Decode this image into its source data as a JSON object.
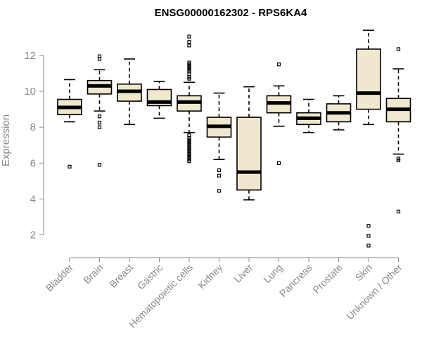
{
  "chart_data": {
    "type": "boxplot",
    "title": "ENSG00000162302 - RPS6KA4",
    "xlabel": "",
    "ylabel": "Expression",
    "ylim": [
      1.2,
      13.6
    ],
    "yticks": [
      2,
      4,
      6,
      8,
      10,
      12
    ],
    "grid": false,
    "categories": [
      "Bladder",
      "Brain",
      "Breast",
      "Gastric",
      "Hematopoietic cells",
      "Kidney",
      "Liver",
      "Lung",
      "Pancreas",
      "Prostate",
      "Skin",
      "Unknown / Other"
    ],
    "box_color": "#efe8cf",
    "boxes": [
      {
        "min": 8.3,
        "q1": 8.7,
        "median": 9.1,
        "q3": 9.55,
        "max": 10.65,
        "outliers": [
          5.8
        ]
      },
      {
        "min": 8.9,
        "q1": 9.85,
        "median": 10.3,
        "q3": 10.6,
        "max": 11.2,
        "outliers": [
          11.95,
          11.8,
          8.6,
          8.25,
          8.0,
          5.9
        ]
      },
      {
        "min": 8.15,
        "q1": 9.45,
        "median": 10.0,
        "q3": 10.4,
        "max": 11.8,
        "outliers": []
      },
      {
        "min": 8.5,
        "q1": 9.2,
        "median": 9.4,
        "q3": 10.1,
        "max": 10.55,
        "outliers": []
      },
      {
        "min": 7.7,
        "q1": 8.9,
        "median": 9.4,
        "q3": 9.75,
        "max": 10.5,
        "outliers": [
          13.05,
          12.75,
          12.55,
          11.6,
          11.5,
          11.4,
          11.3,
          11.2,
          11.1,
          10.95,
          10.8,
          10.7,
          7.55,
          7.4,
          7.3,
          7.2,
          7.1,
          7.0,
          6.9,
          6.8,
          6.7,
          6.6,
          6.5,
          6.4,
          6.3,
          6.2,
          6.1
        ]
      },
      {
        "min": 6.2,
        "q1": 7.45,
        "median": 8.05,
        "q3": 8.55,
        "max": 9.9,
        "outliers": [
          5.6,
          5.3,
          4.45
        ]
      },
      {
        "min": 3.95,
        "q1": 4.5,
        "median": 5.5,
        "q3": 8.55,
        "max": 10.25,
        "outliers": []
      },
      {
        "min": 8.05,
        "q1": 8.8,
        "median": 9.35,
        "q3": 9.75,
        "max": 10.3,
        "outliers": [
          11.5,
          6.0
        ]
      },
      {
        "min": 7.7,
        "q1": 8.15,
        "median": 8.5,
        "q3": 8.8,
        "max": 9.55,
        "outliers": []
      },
      {
        "min": 7.85,
        "q1": 8.3,
        "median": 8.8,
        "q3": 9.3,
        "max": 9.75,
        "outliers": []
      },
      {
        "min": 8.15,
        "q1": 9.0,
        "median": 9.9,
        "q3": 12.35,
        "max": 13.4,
        "outliers": [
          2.5,
          1.95,
          1.4
        ]
      },
      {
        "min": 6.5,
        "q1": 8.3,
        "median": 9.0,
        "q3": 9.6,
        "max": 11.25,
        "outliers": [
          12.35,
          6.25,
          6.15,
          3.3
        ]
      }
    ]
  }
}
